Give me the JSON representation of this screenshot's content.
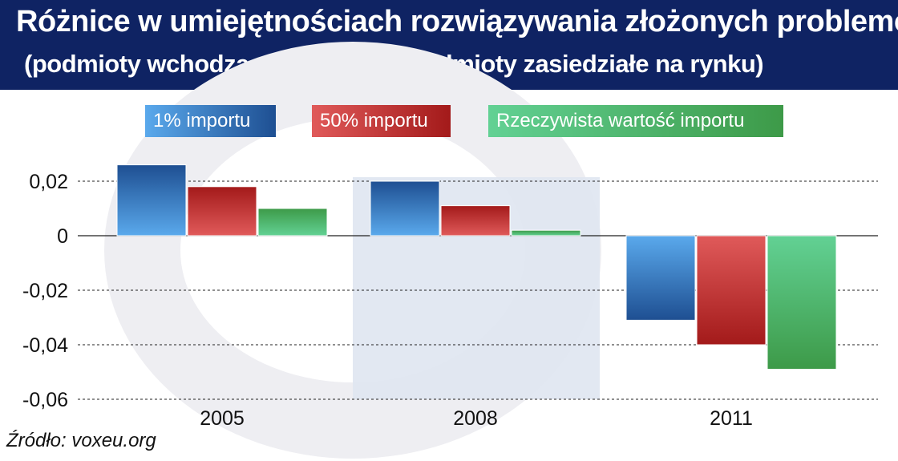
{
  "header": {
    "title": "Różnice w umiejętnościach rozwiązywania złożonych problemów",
    "subtitle": "(podmioty wchodzące na rynek – podmioty zasiedziałe na rynku)"
  },
  "source": "Źródło: voxeu.org",
  "colors": {
    "header_bg": "#0f2363",
    "series": [
      "#2e6fb8",
      "#c42b2b",
      "#4fb870"
    ],
    "highlight_band": "#dfe6f1"
  },
  "chart_data": {
    "type": "bar",
    "categories": [
      "2005",
      "2008",
      "2011"
    ],
    "series": [
      {
        "name": "1% importu",
        "values": [
          0.026,
          0.02,
          -0.031
        ]
      },
      {
        "name": "50% importu",
        "values": [
          0.018,
          0.011,
          -0.04
        ]
      },
      {
        "name": "Rzeczywista wartość importu",
        "values": [
          0.01,
          0.002,
          -0.049
        ]
      }
    ],
    "ylim": [
      -0.06,
      0.025
    ],
    "yticks": [
      0.02,
      0,
      -0.02,
      -0.04,
      -0.06
    ],
    "ytick_labels": [
      "0,02",
      "0",
      "-0,02",
      "-0,04",
      "-0,06"
    ],
    "grid": "dashed horizontal",
    "legend": "top",
    "highlighted_category": "2008",
    "title": "Różnice w umiejętnościach rozwiązywania złożonych problemów",
    "subtitle": "(podmioty wchodzące na rynek – podmioty zasiedziałe na rynku)"
  }
}
